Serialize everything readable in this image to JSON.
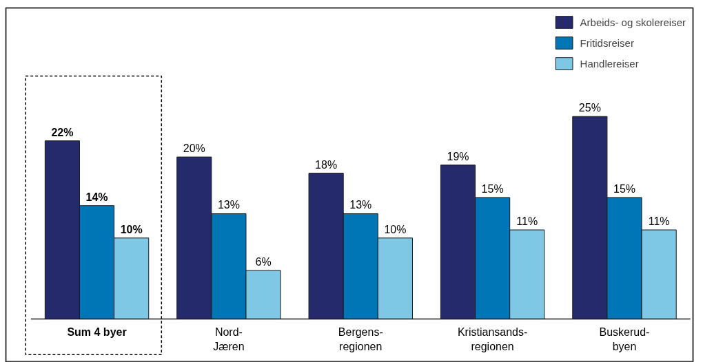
{
  "chart_data": {
    "type": "bar",
    "categories": [
      "Sum 4 byer",
      "Nord-\nJæren",
      "Bergens-\nregionen",
      "Kristiansands-\nregionen",
      "Buskerud-\nbyen"
    ],
    "series": [
      {
        "name": "Arbeids- og skolereiser",
        "color": "#242a6b",
        "values": [
          22,
          20,
          18,
          19,
          25
        ],
        "value_labels": [
          "22%",
          "20%",
          "18%",
          "19%",
          "25%"
        ]
      },
      {
        "name": "Fritidsreiser",
        "color": "#0076b6",
        "values": [
          14,
          13,
          13,
          15,
          15
        ],
        "value_labels": [
          "14%",
          "13%",
          "13%",
          "15%",
          "15%"
        ]
      },
      {
        "name": "Handlereiser",
        "color": "#7ec8e5",
        "values": [
          10,
          6,
          10,
          11,
          11
        ],
        "value_labels": [
          "10%",
          "6%",
          "10%",
          "11%",
          "11%"
        ]
      }
    ],
    "legend": "top right"
  }
}
